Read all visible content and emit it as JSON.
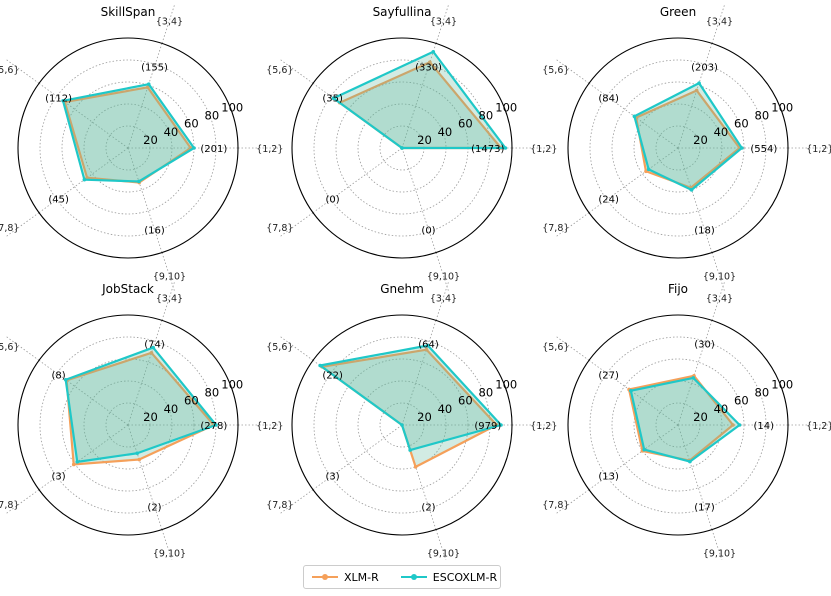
{
  "chart_data": {
    "type": "radar",
    "axes": [
      "{1,2}",
      "{3,4}",
      "{5,6}",
      "{7,8}",
      "{9,10}"
    ],
    "rlim": [
      0,
      100
    ],
    "rticks": [
      20,
      40,
      60,
      80,
      100
    ],
    "colors": {
      "XLM-R": "#f5a05a",
      "ESCOXLM-R": "#1fc8c8",
      "fill": "#5cb89a"
    },
    "legend": [
      "XLM-R",
      "ESCOXLM-R"
    ],
    "panels": [
      {
        "title": "SkillSpan",
        "counts": [
          "(201)",
          "(155)",
          "(112)",
          "(45)",
          "(16)"
        ],
        "series": [
          {
            "name": "XLM-R",
            "values": [
              57,
              58,
              71,
              46,
              33
            ]
          },
          {
            "name": "ESCOXLM-R",
            "values": [
              60,
              61,
              73,
              49,
              32
            ]
          }
        ]
      },
      {
        "title": "Sayfullina",
        "counts": [
          "(1473)",
          "(330)",
          "(35)",
          "(0)",
          "(0)"
        ],
        "series": [
          {
            "name": "XLM-R",
            "values": [
              90,
              82,
              70,
              0,
              0
            ]
          },
          {
            "name": "ESCOXLM-R",
            "values": [
              94,
              92,
              77,
              0,
              0
            ]
          }
        ]
      },
      {
        "title": "Green",
        "counts": [
          "(554)",
          "(203)",
          "(84)",
          "(24)",
          "(18)"
        ],
        "series": [
          {
            "name": "XLM-R",
            "values": [
              56,
              55,
              47,
              36,
              38
            ]
          },
          {
            "name": "ESCOXLM-R",
            "values": [
              58,
              62,
              49,
              33,
              40
            ]
          }
        ]
      },
      {
        "title": "JobStack",
        "counts": [
          "(278)",
          "(74)",
          "(8)",
          "(3)",
          "(2)"
        ],
        "series": [
          {
            "name": "XLM-R",
            "values": [
              78,
              69,
              69,
              61,
              33
            ]
          },
          {
            "name": "ESCOXLM-R",
            "values": [
              80,
              74,
              70,
              57,
              27
            ]
          }
        ]
      },
      {
        "title": "Gnehm",
        "counts": [
          "(979)",
          "(64)",
          "(22)",
          "(3)",
          "(2)"
        ],
        "series": [
          {
            "name": "XLM-R",
            "values": [
              86,
              72,
              90,
              0,
              40
            ]
          },
          {
            "name": "ESCOXLM-R",
            "values": [
              90,
              76,
              92,
              0,
              24
            ]
          }
        ]
      },
      {
        "title": "Fijo",
        "counts": [
          "(14)",
          "(30)",
          "(27)",
          "(13)",
          "(17)"
        ],
        "series": [
          {
            "name": "XLM-R",
            "values": [
              50,
              47,
              55,
              40,
              34
            ]
          },
          {
            "name": "ESCOXLM-R",
            "values": [
              56,
              45,
              53,
              38,
              35
            ]
          }
        ]
      }
    ]
  }
}
